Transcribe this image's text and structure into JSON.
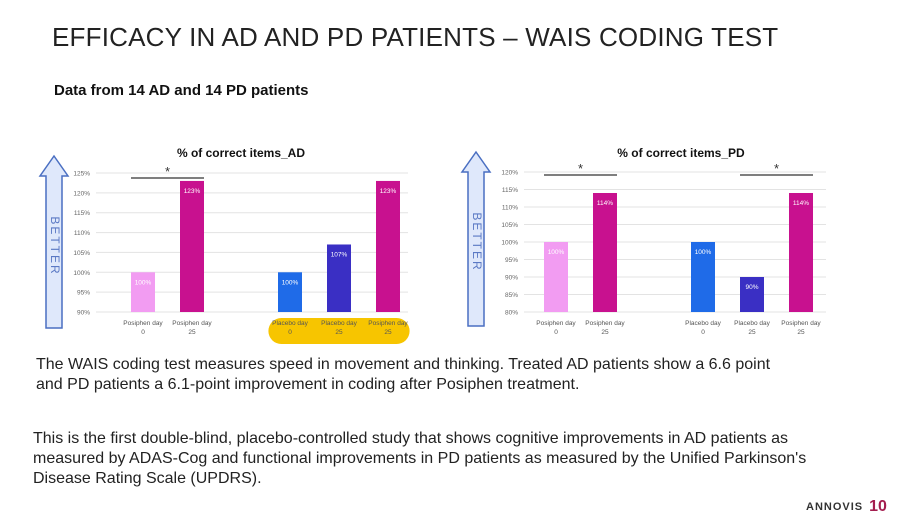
{
  "slide": {
    "title": "EFFICACY IN AD AND PD PATIENTS – WAIS CODING TEST",
    "subtitle": "Data from 14 AD and 14 PD patients",
    "paragraph1": "The WAIS coding test measures speed in movement and thinking. Treated AD patients show a 6.6 point and PD patients a 6.1-point improvement in coding after Posiphen treatment.",
    "paragraph2": "This is the first double-blind, placebo-controlled study that shows cognitive improvements in AD patients as measured by ADAS-Cog and functional improvements in PD patients as measured by the Unified Parkinson's Disease Rating Scale (UPDRS).",
    "logo": "ANNOVIS",
    "page_number": "10",
    "arrow_label": "BETTER"
  },
  "colors": {
    "posiphen_day0": "#f29cf2",
    "posiphen_day25": "#c8118f",
    "placebo_day0": "#1f6be8",
    "placebo_day25": "#3a2fc4",
    "arrow_fill": "#dfe8fb",
    "arrow_stroke": "#4a6fc2",
    "highlight": "#f7c500"
  },
  "chart_data": [
    {
      "type": "bar",
      "title": "% of correct items_AD",
      "ylim": [
        90,
        125
      ],
      "yticks": [
        90,
        95,
        100,
        105,
        110,
        115,
        120,
        125
      ],
      "tick_suffix": "%",
      "grid": true,
      "bars": [
        {
          "label": [
            "Posiphen day",
            "0"
          ],
          "value": 100,
          "value_label": "100%",
          "color": "#f29cf2"
        },
        {
          "label": [
            "Posiphen day",
            "25"
          ],
          "value": 123,
          "value_label": "123%",
          "color": "#c8118f"
        },
        {
          "label": [
            "Placebo day",
            "0"
          ],
          "value": 100,
          "value_label": "100%",
          "color": "#1f6be8"
        },
        {
          "label": [
            "Placebo day",
            "25"
          ],
          "value": 107,
          "value_label": "107%",
          "color": "#3a2fc4"
        },
        {
          "label": [
            "Posiphen day",
            "25"
          ],
          "value": 123,
          "value_label": "123%",
          "color": "#c8118f"
        }
      ],
      "significance": [
        {
          "from": 0,
          "to": 1,
          "label": "*"
        }
      ],
      "highlight_bars": [
        2,
        3,
        4
      ]
    },
    {
      "type": "bar",
      "title": "% of correct items_PD",
      "ylim": [
        80,
        120
      ],
      "yticks": [
        80,
        85,
        90,
        95,
        100,
        105,
        110,
        115,
        120
      ],
      "tick_suffix": "%",
      "grid": true,
      "bars": [
        {
          "label": [
            "Posiphen day",
            "0"
          ],
          "value": 100,
          "value_label": "100%",
          "color": "#f29cf2"
        },
        {
          "label": [
            "Posiphen day",
            "25"
          ],
          "value": 114,
          "value_label": "114%",
          "color": "#c8118f"
        },
        {
          "label": [
            "Placebo day",
            "0"
          ],
          "value": 100,
          "value_label": "100%",
          "color": "#1f6be8"
        },
        {
          "label": [
            "Placebo day",
            "25"
          ],
          "value": 90,
          "value_label": "90%",
          "color": "#3a2fc4"
        },
        {
          "label": [
            "Posiphen day",
            "25"
          ],
          "value": 114,
          "value_label": "114%",
          "color": "#c8118f"
        }
      ],
      "significance": [
        {
          "from": 0,
          "to": 1,
          "label": "*"
        },
        {
          "from": 3,
          "to": 4,
          "label": "*"
        }
      ],
      "highlight_bars": []
    }
  ]
}
